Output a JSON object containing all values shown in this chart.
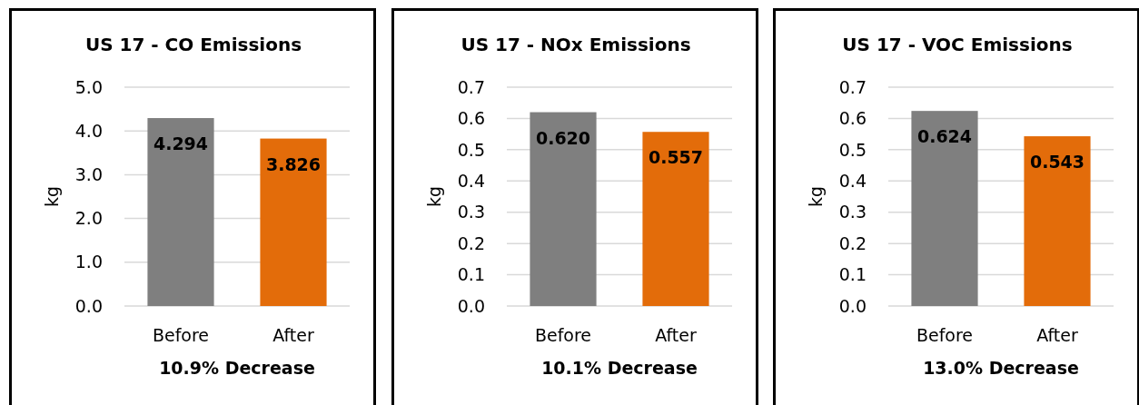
{
  "chart_data": [
    {
      "type": "bar",
      "title": "US 17 - CO Emissions",
      "ylabel": "kg",
      "xlabel": "10.9% Decrease",
      "categories": [
        "Before",
        "After"
      ],
      "values": [
        4.294,
        3.826
      ],
      "colors": [
        "#7f7f7f",
        "#e36c0a"
      ],
      "value_labels": [
        "4.294",
        "3.826"
      ],
      "ylim": [
        0,
        5
      ],
      "yticks": [
        {
          "value": 0,
          "label": "0.0"
        },
        {
          "value": 1,
          "label": "1.0"
        },
        {
          "value": 2,
          "label": "2.0"
        },
        {
          "value": 3,
          "label": "3.0"
        },
        {
          "value": 4,
          "label": "4.0"
        },
        {
          "value": 5,
          "label": "5.0"
        }
      ],
      "grid": "y"
    },
    {
      "type": "bar",
      "title": "US 17 - NOx Emissions",
      "ylabel": "kg",
      "xlabel": "10.1% Decrease",
      "categories": [
        "Before",
        "After"
      ],
      "values": [
        0.62,
        0.557
      ],
      "colors": [
        "#7f7f7f",
        "#e36c0a"
      ],
      "value_labels": [
        "0.620",
        "0.557"
      ],
      "ylim": [
        0,
        0.7
      ],
      "yticks": [
        {
          "value": 0,
          "label": "0.0"
        },
        0.1,
        0.2,
        0.3,
        0.4,
        0.5,
        0.6,
        0.7
      ],
      "grid": "y"
    },
    {
      "type": "bar",
      "title": "US 17 - VOC Emissions",
      "ylabel": "kg",
      "xlabel": "13.0% Decrease",
      "categories": [
        "Before",
        "After"
      ],
      "values": [
        0.624,
        0.543
      ],
      "colors": [
        "#7f7f7f",
        "#e36c0a"
      ],
      "value_labels": [
        "0.624",
        "0.543"
      ],
      "ylim": [
        0,
        0.7
      ],
      "yticks": [
        {
          "value": 0,
          "label": "0.0"
        },
        0.1,
        0.2,
        0.3,
        0.4,
        0.5,
        0.6,
        0.7
      ],
      "grid": "y"
    }
  ]
}
